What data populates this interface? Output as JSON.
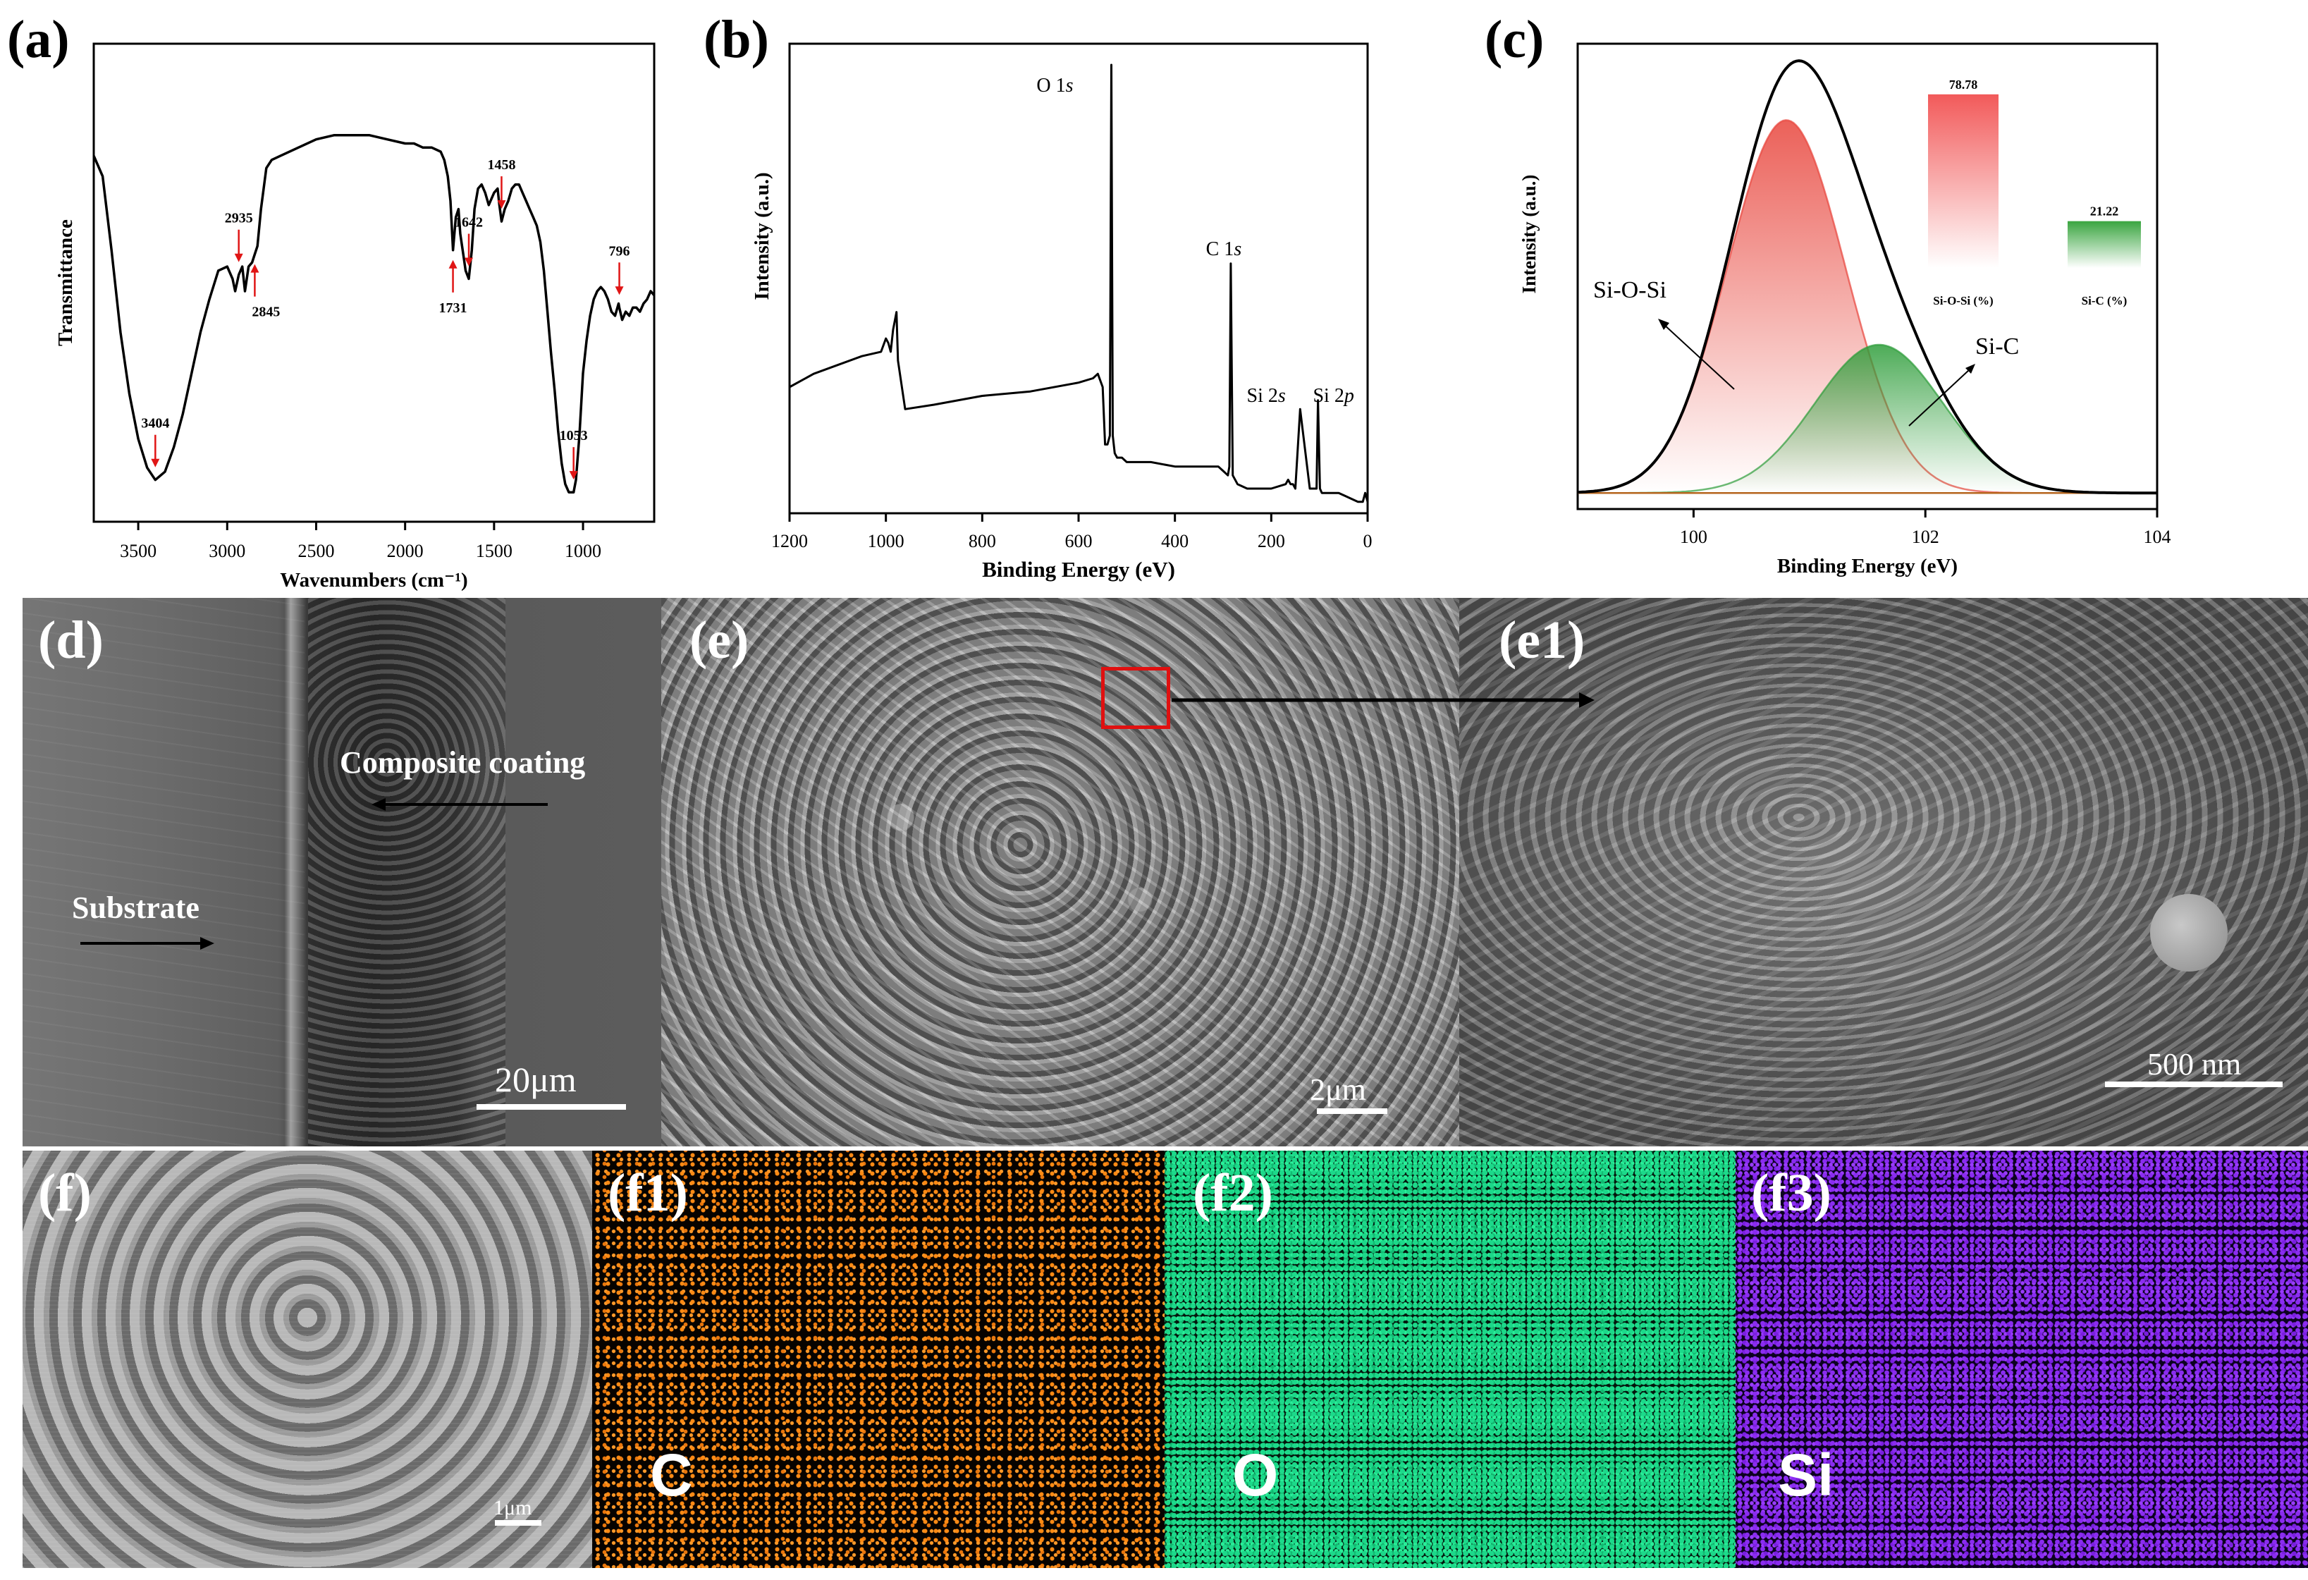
{
  "chart_data": [
    {
      "panel": "(a)",
      "type": "line",
      "title": "",
      "xlabel": "Wavenumbers (cm⁻¹)",
      "ylabel": "Transmittance",
      "xlim": [
        3750,
        600
      ],
      "xticks": [
        3500,
        3000,
        2500,
        2000,
        1500,
        1000
      ],
      "ylim": [
        0,
        1
      ],
      "x": [
        3750,
        3700,
        3650,
        3600,
        3550,
        3500,
        3450,
        3404,
        3350,
        3300,
        3250,
        3200,
        3150,
        3100,
        3050,
        3000,
        2970,
        2955,
        2935,
        2915,
        2900,
        2880,
        2860,
        2845,
        2830,
        2810,
        2780,
        2750,
        2700,
        2600,
        2500,
        2400,
        2300,
        2200,
        2100,
        2000,
        1950,
        1900,
        1850,
        1800,
        1780,
        1760,
        1745,
        1731,
        1715,
        1700,
        1690,
        1670,
        1660,
        1642,
        1625,
        1610,
        1590,
        1570,
        1550,
        1530,
        1500,
        1480,
        1470,
        1458,
        1440,
        1420,
        1400,
        1380,
        1360,
        1340,
        1320,
        1300,
        1280,
        1260,
        1240,
        1220,
        1200,
        1180,
        1160,
        1140,
        1120,
        1100,
        1080,
        1060,
        1053,
        1040,
        1020,
        1000,
        980,
        960,
        940,
        920,
        900,
        880,
        860,
        840,
        820,
        800,
        796,
        780,
        760,
        740,
        720,
        700,
        680,
        660,
        640,
        620,
        600
      ],
      "values": [
        0.83,
        0.78,
        0.6,
        0.4,
        0.25,
        0.14,
        0.07,
        0.04,
        0.06,
        0.12,
        0.2,
        0.3,
        0.4,
        0.48,
        0.55,
        0.56,
        0.53,
        0.5,
        0.54,
        0.56,
        0.5,
        0.56,
        0.57,
        0.59,
        0.61,
        0.7,
        0.8,
        0.82,
        0.83,
        0.85,
        0.87,
        0.88,
        0.88,
        0.88,
        0.87,
        0.86,
        0.86,
        0.85,
        0.85,
        0.84,
        0.82,
        0.78,
        0.72,
        0.6,
        0.68,
        0.7,
        0.64,
        0.58,
        0.55,
        0.53,
        0.6,
        0.7,
        0.75,
        0.76,
        0.74,
        0.71,
        0.74,
        0.75,
        0.71,
        0.67,
        0.7,
        0.72,
        0.75,
        0.76,
        0.76,
        0.74,
        0.72,
        0.7,
        0.68,
        0.66,
        0.62,
        0.55,
        0.45,
        0.35,
        0.26,
        0.16,
        0.08,
        0.03,
        0.01,
        0.01,
        0.01,
        0.04,
        0.15,
        0.3,
        0.38,
        0.44,
        0.48,
        0.5,
        0.51,
        0.5,
        0.48,
        0.45,
        0.44,
        0.47,
        0.46,
        0.43,
        0.45,
        0.44,
        0.46,
        0.46,
        0.45,
        0.47,
        0.48,
        0.5,
        0.49
      ],
      "annotations": [
        {
          "label": "3404",
          "x": 3404,
          "arrow": "down"
        },
        {
          "label": "2935",
          "x": 2935,
          "arrow": "down"
        },
        {
          "label": "2845",
          "x": 2845,
          "arrow": "up"
        },
        {
          "label": "1731",
          "x": 1731,
          "arrow": "up"
        },
        {
          "label": "1642",
          "x": 1642,
          "arrow": "down"
        },
        {
          "label": "1458",
          "x": 1458,
          "arrow": "down"
        },
        {
          "label": "1053",
          "x": 1053,
          "arrow": "down"
        },
        {
          "label": "796",
          "x": 796,
          "arrow": "down"
        }
      ]
    },
    {
      "panel": "(b)",
      "type": "line",
      "title": "",
      "xlabel": "Binding Energy (eV)",
      "ylabel": "Intensity (a.u.)",
      "xlim": [
        1200,
        0
      ],
      "xticks": [
        1200,
        1000,
        800,
        600,
        400,
        200,
        0
      ],
      "ylim": [
        0,
        1
      ],
      "x": [
        1200,
        1150,
        1100,
        1050,
        1010,
        1000,
        995,
        990,
        985,
        978,
        975,
        960,
        900,
        800,
        700,
        600,
        570,
        560,
        550,
        545,
        540,
        535,
        532,
        529,
        525,
        520,
        510,
        500,
        450,
        400,
        350,
        310,
        300,
        290,
        287,
        284,
        280,
        270,
        250,
        220,
        200,
        170,
        165,
        160,
        155,
        150,
        140,
        120,
        110,
        106,
        103,
        99,
        95,
        80,
        60,
        40,
        20,
        10,
        5,
        0
      ],
      "values": [
        0.27,
        0.3,
        0.32,
        0.34,
        0.35,
        0.38,
        0.37,
        0.35,
        0.4,
        0.44,
        0.33,
        0.22,
        0.23,
        0.25,
        0.26,
        0.28,
        0.29,
        0.3,
        0.27,
        0.14,
        0.14,
        0.16,
        1.0,
        0.16,
        0.12,
        0.11,
        0.11,
        0.1,
        0.1,
        0.09,
        0.09,
        0.09,
        0.08,
        0.07,
        0.09,
        0.55,
        0.07,
        0.05,
        0.04,
        0.04,
        0.04,
        0.05,
        0.06,
        0.05,
        0.05,
        0.04,
        0.22,
        0.04,
        0.04,
        0.04,
        0.24,
        0.04,
        0.03,
        0.03,
        0.03,
        0.02,
        0.01,
        0.01,
        0.03,
        0.01
      ],
      "annotations": [
        {
          "label": "O 1",
          "suffix": "s",
          "x": 532
        },
        {
          "label": "C 1",
          "suffix": "s",
          "x": 284
        },
        {
          "label": "Si 2",
          "suffix": "s",
          "x": 152
        },
        {
          "label": "Si 2",
          "suffix": "p",
          "x": 100
        }
      ]
    },
    {
      "panel": "(c)",
      "type": "area",
      "title": "",
      "xlabel": "Binding Energy (eV)",
      "ylabel": "Intensity (a.u.)",
      "xlim": [
        99,
        104
      ],
      "xticks": [
        100,
        102,
        104
      ],
      "ylim": [
        0,
        1.02
      ],
      "envelope": {
        "name": "Envelope",
        "color": "#000000"
      },
      "series": [
        {
          "name": "Si-O-Si",
          "center": 100.8,
          "height": 0.83,
          "fwhm": 1.2,
          "color": "#e8453c"
        },
        {
          "name": "Si-C",
          "center": 101.6,
          "height": 0.33,
          "fwhm": 1.3,
          "color": "#2e9d3a"
        }
      ],
      "baseline": {
        "value": 0.02,
        "color": "#b5651d"
      },
      "inset": {
        "type": "bar",
        "categories": [
          "Si-O-Si (%)",
          "Si-C (%)"
        ],
        "values": [
          78.78,
          21.22
        ],
        "value_labels": [
          "78.78",
          "21.22"
        ],
        "colors": [
          "#f25a5a",
          "#3aa540"
        ]
      }
    }
  ],
  "panels": {
    "a_letter": "(a)",
    "b_letter": "(b)",
    "c_letter": "(c)",
    "d": {
      "letter": "(d)",
      "coating_label": "Composite coating",
      "substrate_label": "Substrate",
      "scale": "20μm"
    },
    "e": {
      "letter": "(e)",
      "scale": "2μm"
    },
    "e1": {
      "letter": "(e1)",
      "scale": "500 nm"
    },
    "f": {
      "letter": "(f)",
      "scale": "1μm"
    },
    "f1": {
      "letter": "(f1)",
      "element": "C",
      "color": "#ff8a14"
    },
    "f2": {
      "letter": "(f2)",
      "element": "O",
      "color": "#1cd98a"
    },
    "f3": {
      "letter": "(f3)",
      "element": "Si",
      "color": "#8a2cf0"
    }
  }
}
